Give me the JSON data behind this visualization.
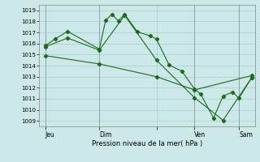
{
  "title": "",
  "xlabel": "Pression niveau de la mer( hPa )",
  "ylabel": "",
  "bg_color": "#cce8e8",
  "grid_color": "#a8cccc",
  "line_color": "#1a6b1a",
  "ylim": [
    1008.5,
    1019.5
  ],
  "yticks": [
    1009,
    1010,
    1011,
    1012,
    1013,
    1014,
    1015,
    1016,
    1017,
    1018,
    1019
  ],
  "xlim": [
    -0.5,
    33.5
  ],
  "xtick_positions": [
    0.5,
    9,
    18,
    24,
    31
  ],
  "xtick_labels": [
    "Jeu",
    "Dim",
    "",
    "Ven",
    "Sam"
  ],
  "vline_positions": [
    0.5,
    9,
    24,
    31
  ],
  "series1": {
    "x": [
      0.5,
      2,
      4,
      9,
      10,
      11,
      12,
      13,
      15,
      17,
      18,
      20,
      22,
      24,
      25,
      27,
      28.5,
      30,
      31,
      33
    ],
    "y": [
      1015.8,
      1016.4,
      1017.1,
      1015.5,
      1018.1,
      1018.65,
      1018.05,
      1018.65,
      1017.05,
      1016.7,
      1016.4,
      1014.05,
      1013.5,
      1011.9,
      1011.4,
      1009.25,
      1011.25,
      1011.6,
      1011.05,
      1012.9
    ]
  },
  "series2": {
    "x": [
      0.5,
      4,
      9,
      13,
      18,
      24,
      28.5,
      33
    ],
    "y": [
      1015.7,
      1016.5,
      1015.4,
      1018.55,
      1014.5,
      1011.1,
      1009.05,
      1012.9
    ]
  },
  "series3": {
    "x": [
      0.5,
      9,
      18,
      24,
      33
    ],
    "y": [
      1014.9,
      1014.15,
      1013.0,
      1011.8,
      1013.1
    ]
  }
}
